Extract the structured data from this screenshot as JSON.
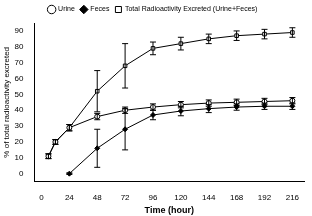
{
  "chart_data": {
    "type": "line",
    "x_label": "Time (hour)",
    "y_label": "% of total radioactivity excreted",
    "x": [
      6,
      12,
      24,
      48,
      72,
      96,
      120,
      144,
      168,
      192,
      216
    ],
    "series": [
      {
        "name": "Urine",
        "color": "#000000",
        "marker": "circle_open",
        "values": [
          11,
          20,
          29,
          36,
          40,
          42,
          43.5,
          44.5,
          45,
          45.5,
          46
        ],
        "errors": [
          1.5,
          1.5,
          2,
          2,
          2,
          2,
          2,
          2,
          2,
          2,
          2
        ]
      },
      {
        "name": "Feces",
        "color": "#000000",
        "marker": "diamond",
        "values": [
          null,
          null,
          0,
          16,
          28,
          37,
          39.5,
          41,
          42,
          42.5,
          42.5
        ],
        "errors": [
          null,
          null,
          0.5,
          12,
          13,
          3,
          3,
          2.5,
          2,
          2,
          2
        ]
      },
      {
        "name": "Total Radioactivity Excreted (Urine+Feces)",
        "color": "#000000",
        "marker": "square_open",
        "values": [
          11,
          20,
          29,
          52,
          68,
          79,
          82,
          85,
          87,
          88,
          89
        ],
        "errors": [
          1.5,
          1.5,
          2,
          13,
          14,
          4,
          4,
          3,
          3,
          3,
          3
        ]
      }
    ],
    "xlim": [
      -6,
      226
    ],
    "xticks": [
      0,
      24,
      48,
      72,
      96,
      120,
      144,
      168,
      192,
      216
    ],
    "ylim": [
      -5,
      95
    ],
    "yticks": [
      0,
      10,
      20,
      30,
      40,
      50,
      60,
      70,
      80,
      90
    ],
    "grid": false,
    "legend": "top"
  }
}
